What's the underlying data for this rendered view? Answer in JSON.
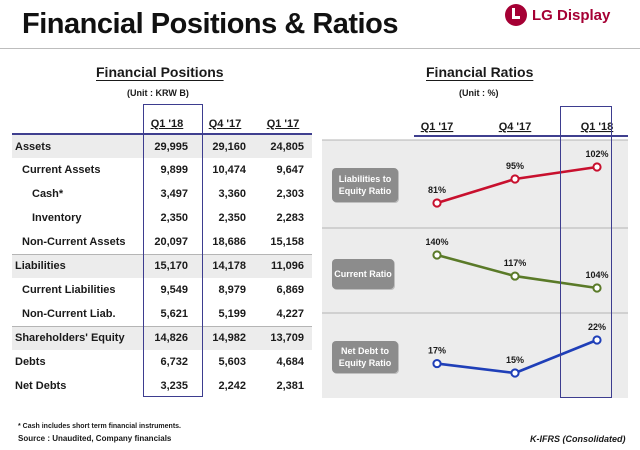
{
  "page": {
    "title": "Financial Positions & Ratios"
  },
  "logo": {
    "text": "LG Display"
  },
  "positions": {
    "title": "Financial Positions",
    "unit": "(Unit : KRW B)",
    "columns": [
      "Q1 '18",
      "Q4 '17",
      "Q1 '17"
    ],
    "rows": [
      {
        "label": "Assets",
        "values": [
          "29,995",
          "29,160",
          "24,805"
        ]
      },
      {
        "label": "Current Assets",
        "values": [
          "9,899",
          "10,474",
          "9,647"
        ]
      },
      {
        "label": "Cash*",
        "values": [
          "3,497",
          "3,360",
          "2,303"
        ]
      },
      {
        "label": "Inventory",
        "values": [
          "2,350",
          "2,350",
          "2,283"
        ]
      },
      {
        "label": "Non-Current Assets",
        "values": [
          "20,097",
          "18,686",
          "15,158"
        ]
      },
      {
        "label": "Liabilities",
        "values": [
          "15,170",
          "14,178",
          "11,096"
        ]
      },
      {
        "label": "Current Liabilities",
        "values": [
          "9,549",
          "8,979",
          "6,869"
        ]
      },
      {
        "label": "Non-Current Liab.",
        "values": [
          "5,621",
          "5,199",
          "4,227"
        ]
      },
      {
        "label": "Shareholders' Equity",
        "values": [
          "14,826",
          "14,982",
          "13,709"
        ]
      },
      {
        "label": "Debts",
        "values": [
          "6,732",
          "5,603",
          "4,684"
        ]
      },
      {
        "label": "Net Debts",
        "values": [
          "3,235",
          "2,242",
          "2,381"
        ]
      }
    ]
  },
  "footnotes": {
    "cash": "* Cash includes short term financial instruments.",
    "source": "Source : Unaudited, Company financials",
    "ifrs": "K-IFRS (Consolidated)"
  },
  "chart_data": {
    "type": "line",
    "title": "Financial Ratios",
    "unit": "(Unit : %)",
    "categories": [
      "Q1 '17",
      "Q4 '17",
      "Q1 '18"
    ],
    "series": [
      {
        "name": "Liabilities to Equity Ratio",
        "values": [
          81,
          95,
          102
        ],
        "labels": [
          "81%",
          "95%",
          "102%"
        ],
        "color": "#c8102e"
      },
      {
        "name": "Current Ratio",
        "values": [
          140,
          117,
          104
        ],
        "labels": [
          "140%",
          "117%",
          "104%"
        ],
        "color": "#5a7a28"
      },
      {
        "name": "Net Debt to Equity Ratio",
        "values": [
          17,
          15,
          22
        ],
        "labels": [
          "17%",
          "15%",
          "22%"
        ],
        "color": "#1f3fb8"
      }
    ]
  }
}
